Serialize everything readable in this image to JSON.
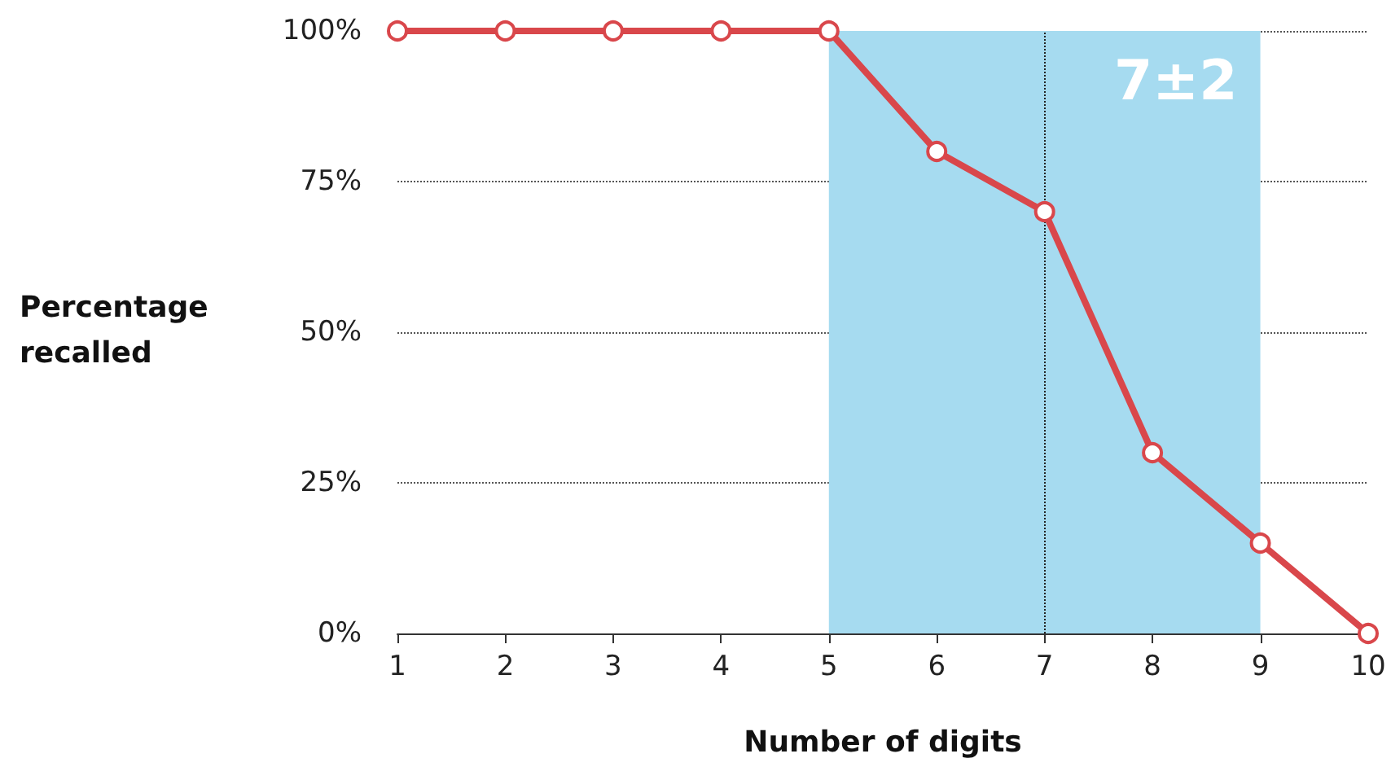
{
  "chart_data": {
    "type": "line",
    "xlabel": "Number of digits",
    "ylabel": "Percentage recalled",
    "x": [
      1,
      2,
      3,
      4,
      5,
      6,
      7,
      8,
      9,
      10
    ],
    "series": [
      {
        "color": "#d9474b",
        "values": [
          100,
          100,
          100,
          100,
          100,
          80,
          70,
          30,
          15,
          0
        ]
      }
    ],
    "xlim": [
      1,
      10
    ],
    "xticks": [
      1,
      2,
      3,
      4,
      5,
      6,
      7,
      8,
      9,
      10
    ],
    "ylim": [
      0,
      100
    ],
    "yticks": [
      {
        "value": 0,
        "label": "0%"
      },
      {
        "value": 25,
        "label": "25%"
      },
      {
        "value": 50,
        "label": "50%"
      },
      {
        "value": 75,
        "label": "75%"
      },
      {
        "value": 100,
        "label": "100%"
      }
    ],
    "bands": [
      {
        "axis": "x",
        "from": 5,
        "to": 9,
        "label": "7±2",
        "color": "#a6dbf0"
      }
    ],
    "ref_lines": [
      {
        "axis": "x",
        "value": 7,
        "color": "#222222",
        "line_style": "dotted"
      }
    ],
    "grid": "y",
    "marker": "circle",
    "line_style": "solid"
  }
}
